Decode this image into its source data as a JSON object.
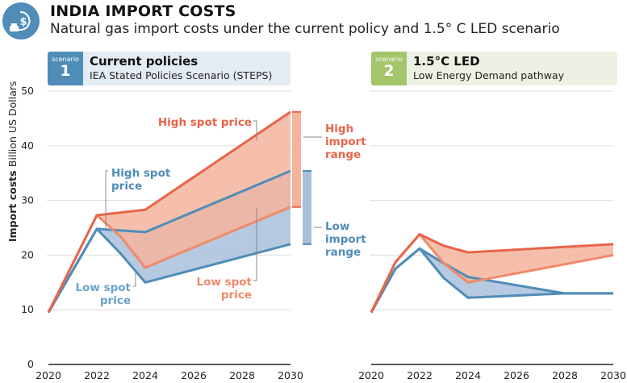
{
  "header": {
    "icon": "dollar-gas-icon",
    "title": "INDIA IMPORT COSTS",
    "subtitle": "Natural gas import costs under the current policy and 1.5° C LED scenario"
  },
  "scenarios": [
    {
      "badge_label": "scenario",
      "number": "1",
      "name": "Current policies",
      "description": "IEA Stated Policies Scenario (STEPS)",
      "color": "#4f8db8"
    },
    {
      "badge_label": "scenario",
      "number": "2",
      "name": "1.5°C LED",
      "description": "Low Energy Demand pathway",
      "color": "#a3c56b"
    }
  ],
  "colors": {
    "high_line": "#e8644a",
    "high_fill": "#f4b49c",
    "low_line": "#f08a6a",
    "blue_line": "#4f8db8",
    "blue_fill": "#a8c0db",
    "overlap_fill": "#d39583",
    "overlap_line": "#b08a8c"
  },
  "chart_data": [
    {
      "type": "area",
      "title": "Current policies",
      "ylabel_bold": "Import costs",
      "ylabel": "Billion US Dollars",
      "xlabel": "",
      "xticks": [
        "2020",
        "2022",
        "2024",
        "2026",
        "2028",
        "2030"
      ],
      "yticks": [
        "0",
        "10",
        "20",
        "30",
        "40",
        "50"
      ],
      "xlim": [
        2020,
        2030
      ],
      "ylim": [
        0,
        50
      ],
      "grid": true,
      "series": [
        {
          "name": "High import - high spot price",
          "x": [
            2020,
            2022,
            2024,
            2030
          ],
          "values": [
            9.5,
            27.3,
            28.3,
            46.2
          ]
        },
        {
          "name": "High import - low spot price",
          "x": [
            2020,
            2022,
            2023,
            2024,
            2030
          ],
          "values": [
            9.5,
            27.3,
            23.3,
            17.7,
            28.8
          ]
        },
        {
          "name": "Low import - high spot price",
          "x": [
            2020,
            2022,
            2024,
            2030
          ],
          "values": [
            9.5,
            24.8,
            24.2,
            35.4
          ]
        },
        {
          "name": "Low import - low spot price",
          "x": [
            2020,
            2022,
            2023,
            2024,
            2030
          ],
          "values": [
            9.5,
            24.8,
            20.2,
            15.0,
            22.0
          ]
        }
      ],
      "ranges": [
        {
          "name": "High import range",
          "min": 28.8,
          "max": 46.2
        },
        {
          "name": "Low import range",
          "min": 22.0,
          "max": 35.4
        }
      ],
      "annotations": [
        {
          "text": [
            "High spot price"
          ],
          "color": "#e8644a"
        },
        {
          "text": [
            "High",
            "import",
            "range"
          ],
          "color": "#e8644a"
        },
        {
          "text": [
            "High spot",
            "price"
          ],
          "color": "#4f8db8"
        },
        {
          "text": [
            "Low",
            "import",
            "range"
          ],
          "color": "#4f8db8"
        },
        {
          "text": [
            "Low spot",
            "price"
          ],
          "color": "#6aa2c9"
        },
        {
          "text": [
            "Low spot",
            "price"
          ],
          "color": "#f08a6a"
        }
      ]
    },
    {
      "type": "area",
      "title": "1.5°C LED",
      "xticks": [
        "2020",
        "2022",
        "2024",
        "2026",
        "2028",
        "2030"
      ],
      "xlim": [
        2020,
        2030
      ],
      "ylim": [
        0,
        50
      ],
      "grid": true,
      "series": [
        {
          "name": "High import - high spot price",
          "x": [
            2020,
            2021,
            2022,
            2023,
            2024,
            2030
          ],
          "values": [
            9.5,
            18.7,
            23.8,
            21.7,
            20.5,
            22.0
          ]
        },
        {
          "name": "High import - low spot price",
          "x": [
            2020,
            2021,
            2022,
            2023,
            2024,
            2030
          ],
          "values": [
            9.5,
            18.7,
            23.8,
            18.5,
            15.0,
            20.0
          ]
        },
        {
          "name": "Low import - high spot price",
          "x": [
            2020,
            2021,
            2022,
            2023,
            2024,
            2028,
            2030
          ],
          "values": [
            9.5,
            17.5,
            21.2,
            18.5,
            16.0,
            13.0,
            13.0
          ]
        },
        {
          "name": "Low import - low spot price",
          "x": [
            2020,
            2021,
            2022,
            2023,
            2024,
            2028,
            2030
          ],
          "values": [
            9.5,
            17.5,
            21.2,
            15.8,
            12.2,
            13.0,
            13.0
          ]
        }
      ]
    }
  ]
}
